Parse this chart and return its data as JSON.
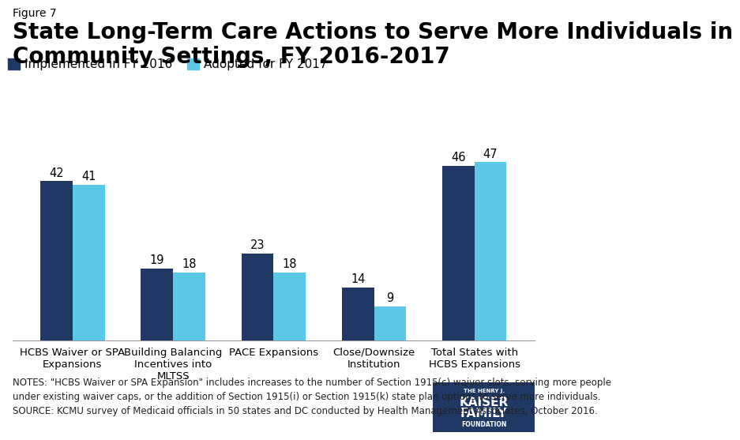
{
  "figure_label": "Figure 7",
  "title": "State Long-Term Care Actions to Serve More Individuals in\nCommunity Settings, FY 2016-2017",
  "categories": [
    "HCBS Waiver or SPA\nExpansions",
    "Building Balancing\nIncentives into\nMLTSS",
    "PACE Expansions",
    "Close/Downsize\nInstitution",
    "Total States with\nHCBS Expansions"
  ],
  "fy2016_values": [
    42,
    19,
    23,
    14,
    46
  ],
  "fy2017_values": [
    41,
    18,
    18,
    9,
    47
  ],
  "color_2016": "#1f3864",
  "color_2017": "#5bc8e8",
  "legend_labels": [
    "Implemented in FY 2016",
    "Adopted for FY 2017"
  ],
  "ylim": [
    0,
    55
  ],
  "bar_width": 0.32,
  "notes_line1": "NOTES: \"HCBS Waiver or SPA Expansion\" includes increases to the number of Section 1915(c) waiver slots, serving more people",
  "notes_line2": "under existing waiver caps, or the addition of Section 1915(i) or Section 1915(k) state plan options to serve more individuals.",
  "notes_line3": "SOURCE: KCMU survey of Medicaid officials in 50 states and DC conducted by Health Management Associates, October 2016.",
  "title_fontsize": 20,
  "figure_label_fontsize": 10,
  "legend_fontsize": 11,
  "axis_label_fontsize": 9.5,
  "notes_fontsize": 8.5,
  "value_fontsize": 10.5,
  "logo_color": "#1f3864"
}
